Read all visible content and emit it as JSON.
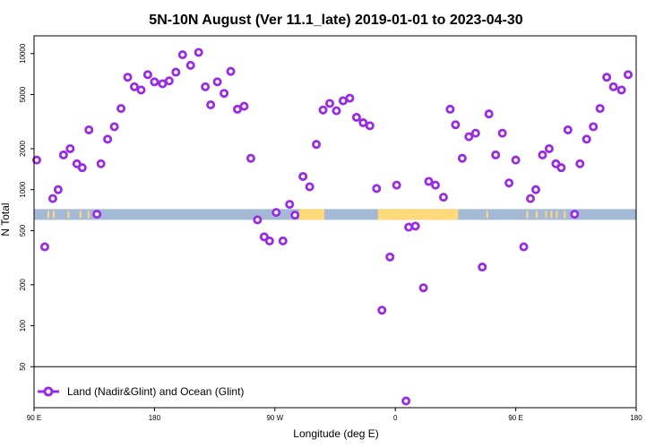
{
  "chart_data": {
    "type": "scatter",
    "title": "5N-10N August (Ver 11.1_late)   2019-01-01 to 2023-04-30",
    "xlabel": "Longitude (deg E)",
    "ylabel": "N Total",
    "yscale": "log",
    "x_ticks": [
      {
        "value": 90,
        "label": "90 E"
      },
      {
        "value": 180,
        "label": "180"
      },
      {
        "value": 270,
        "label": "90 W"
      },
      {
        "value": 360,
        "label": "0"
      },
      {
        "value": 450,
        "label": "90 E"
      },
      {
        "value": 540,
        "label": "180"
      }
    ],
    "y_ticks": [
      {
        "value": 50,
        "label": "50"
      },
      {
        "value": 100,
        "label": "100"
      },
      {
        "value": 200,
        "label": "200"
      },
      {
        "value": 500,
        "label": "500"
      },
      {
        "value": 1000,
        "label": "1000"
      },
      {
        "value": 2000,
        "label": "2000"
      },
      {
        "value": 5000,
        "label": "5000"
      },
      {
        "value": 10000,
        "label": "10000"
      }
    ],
    "xlim": [
      90,
      540
    ],
    "ylim": [
      25,
      13500
    ],
    "land_band_color": "#a3b9d6",
    "land_color": "#ffd97a",
    "series_color": "#9a2be2",
    "series": [
      {
        "name": "Land (Nadir&Glint) and Ocean (Glint)",
        "points": [
          [
            92,
            1650
          ],
          [
            98,
            380
          ],
          [
            104,
            860
          ],
          [
            108,
            1000
          ],
          [
            112,
            1800
          ],
          [
            117,
            2000
          ],
          [
            122,
            1550
          ],
          [
            126,
            1450
          ],
          [
            131,
            2750
          ],
          [
            137,
            660
          ],
          [
            140,
            1550
          ],
          [
            145,
            2350
          ],
          [
            150,
            2900
          ],
          [
            155,
            3950
          ],
          [
            160,
            6700
          ],
          [
            165,
            5700
          ],
          [
            170,
            5400
          ],
          [
            175,
            7000
          ],
          [
            180,
            6200
          ],
          [
            186,
            6000
          ],
          [
            191,
            6300
          ],
          [
            196,
            7300
          ],
          [
            201,
            9800
          ],
          [
            207,
            8200
          ],
          [
            213,
            10200
          ],
          [
            218,
            5700
          ],
          [
            222,
            4200
          ],
          [
            227,
            6200
          ],
          [
            232,
            5100
          ],
          [
            237,
            7400
          ],
          [
            242,
            3900
          ],
          [
            247,
            4100
          ],
          [
            252,
            1700
          ],
          [
            257,
            600
          ],
          [
            262,
            450
          ],
          [
            266,
            420
          ],
          [
            271,
            680
          ],
          [
            276,
            420
          ],
          [
            281,
            780
          ],
          [
            285,
            650
          ],
          [
            291,
            1250
          ],
          [
            296,
            1050
          ],
          [
            301,
            2150
          ],
          [
            306,
            3850
          ],
          [
            311,
            4300
          ],
          [
            316,
            3800
          ],
          [
            321,
            4500
          ],
          [
            326,
            4700
          ],
          [
            331,
            3400
          ],
          [
            336,
            3100
          ],
          [
            341,
            2950
          ],
          [
            346,
            1020
          ],
          [
            350,
            130
          ],
          [
            356,
            320
          ],
          [
            361,
            1080
          ],
          [
            368,
            28
          ],
          [
            370,
            530
          ],
          [
            375,
            540
          ],
          [
            381,
            190
          ],
          [
            385,
            1150
          ],
          [
            390,
            1080
          ],
          [
            396,
            880
          ],
          [
            401,
            3900
          ],
          [
            405,
            3000
          ],
          [
            410,
            1700
          ],
          [
            415,
            2450
          ],
          [
            420,
            2600
          ],
          [
            425,
            270
          ],
          [
            430,
            3600
          ],
          [
            435,
            1800
          ],
          [
            440,
            2600
          ],
          [
            445,
            1120
          ],
          [
            450,
            1650
          ],
          [
            456,
            380
          ],
          [
            461,
            860
          ],
          [
            465,
            1000
          ],
          [
            470,
            1800
          ],
          [
            475,
            2000
          ],
          [
            480,
            1550
          ],
          [
            484,
            1450
          ],
          [
            489,
            2750
          ],
          [
            494,
            660
          ],
          [
            498,
            1550
          ],
          [
            503,
            2350
          ],
          [
            508,
            2900
          ],
          [
            513,
            3950
          ],
          [
            518,
            6700
          ],
          [
            523,
            5700
          ],
          [
            529,
            5400
          ],
          [
            534,
            7000
          ]
        ]
      }
    ]
  }
}
